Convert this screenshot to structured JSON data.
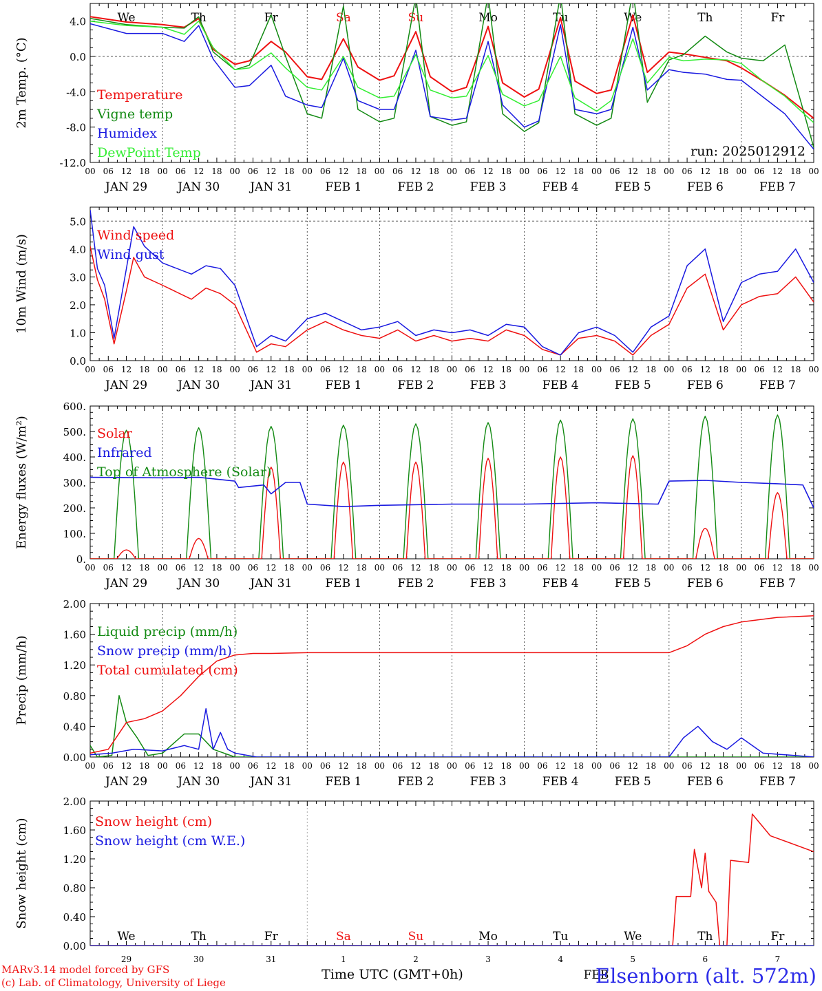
{
  "colors": {
    "red": "#ee1111",
    "green": "#138a13",
    "blue": "#1a1ae0",
    "light_green": "#33ee33",
    "grid": "#555555"
  },
  "footer": {
    "credit1": "MARv3.14 model forced by GFS",
    "credit2": "(c) Lab. of Climatology, University of Liege",
    "xlabel": "Time UTC (GMT+0h)",
    "station": "Elsenborn (alt. 572m)",
    "feb_label": "FEB"
  },
  "chart_data": [
    {
      "type": "line",
      "ylabel": "2m Temp. (°C)",
      "ylim": [
        -12,
        6
      ],
      "yticks": [
        "4.0",
        "0.0",
        "-4.0",
        "-8.0",
        "-12.0"
      ],
      "ytick_values": [
        4,
        0,
        -4,
        -8,
        -12
      ],
      "dashed_y": [
        0
      ],
      "weekdays": [
        "We",
        "Th",
        "Fr",
        "Sa",
        "Su",
        "Mo",
        "Tu",
        "We",
        "Th",
        "Fr"
      ],
      "weekend_days": [
        3,
        4
      ],
      "hour_labels": [
        "00",
        "06",
        "12",
        "18"
      ],
      "date_labels": [
        "JAN 29",
        "JAN 30",
        "JAN 31",
        "FEB 1",
        "FEB 2",
        "FEB 3",
        "FEB 4",
        "FEB 5",
        "FEB 6",
        "FEB 7"
      ],
      "run_label": "run: 2025012912",
      "legend": [
        "Temperature",
        "Vigne temp",
        "Humidex",
        "DewPoint Temp"
      ],
      "x_unit": "days from JAN 29 00 UTC",
      "series": [
        {
          "name": "Temperature",
          "x": [
            0,
            0.5,
            1,
            1.3,
            1.5,
            1.7,
            2,
            2.2,
            2.5,
            2.7,
            3,
            3.2,
            3.5,
            3.7,
            4,
            4.2,
            4.5,
            4.7,
            5,
            5.2,
            5.5,
            5.7,
            6,
            6.2,
            6.5,
            6.7,
            7,
            7.2,
            7.5,
            7.7,
            8,
            8.2,
            8.5,
            8.8,
            9,
            9.3,
            9.6,
            10
          ],
          "y": [
            4.5,
            3.9,
            3.6,
            3.3,
            4.3,
            0.8,
            -0.9,
            -0.5,
            1.7,
            0.5,
            -2.3,
            -2.6,
            2,
            -1.2,
            -2.7,
            -2.2,
            2.8,
            -2.3,
            -4,
            -3.5,
            3.4,
            -3,
            -4.6,
            -3.7,
            4.4,
            -2.8,
            -4.2,
            -3.8,
            4.7,
            -1.8,
            0.5,
            0.3,
            -0.1,
            -0.5,
            -1.3,
            -2.8,
            -4.4,
            -7
          ],
          "color": "#ee1111"
        },
        {
          "name": "Vigne temp",
          "x": [
            0,
            0.5,
            1,
            1.3,
            1.5,
            1.7,
            2,
            2.2,
            2.5,
            2.7,
            3,
            3.2,
            3.5,
            3.7,
            4,
            4.2,
            4.5,
            4.7,
            5,
            5.2,
            5.5,
            5.7,
            6,
            6.2,
            6.5,
            6.7,
            7,
            7.2,
            7.5,
            7.7,
            8,
            8.2,
            8.5,
            8.8,
            9,
            9.3,
            9.6,
            10
          ],
          "y": [
            4.3,
            3.6,
            3.3,
            3.2,
            4.5,
            0.5,
            -1.5,
            -1,
            4.7,
            0,
            -6.5,
            -7,
            5.7,
            -6,
            -7.4,
            -7,
            6.8,
            -6.8,
            -7.8,
            -7.4,
            7,
            -6.5,
            -8.5,
            -7.5,
            7,
            -6.5,
            -7.8,
            -7,
            7.5,
            -5.2,
            -0.4,
            0.2,
            2.3,
            0.5,
            -0.2,
            -0.5,
            1.3,
            -10.3
          ],
          "color": "#138a13"
        },
        {
          "name": "Humidex",
          "x": [
            0,
            0.5,
            1,
            1.3,
            1.5,
            1.7,
            2,
            2.2,
            2.5,
            2.7,
            3,
            3.2,
            3.5,
            3.7,
            4,
            4.2,
            4.5,
            4.7,
            5,
            5.2,
            5.5,
            5.7,
            6,
            6.2,
            6.5,
            6.7,
            7,
            7.2,
            7.5,
            7.7,
            8,
            8.2,
            8.5,
            8.8,
            9,
            9.3,
            9.6,
            10
          ],
          "y": [
            3.7,
            2.6,
            2.6,
            1.7,
            3.5,
            -0.3,
            -3.5,
            -3.3,
            -1,
            -4.5,
            -5.5,
            -5.8,
            -0.2,
            -5,
            -6,
            -6,
            0.7,
            -6.8,
            -7.2,
            -7,
            1.7,
            -5.5,
            -8,
            -7.3,
            3.6,
            -6,
            -6.5,
            -6,
            3.3,
            -3.8,
            -1.5,
            -1.8,
            -2,
            -2.6,
            -2.7,
            -4.6,
            -6.5,
            -10.5
          ],
          "color": "#1a1ae0"
        },
        {
          "name": "DewPoint Temp",
          "x": [
            0,
            0.5,
            1,
            1.3,
            1.5,
            1.7,
            2,
            2.2,
            2.5,
            2.7,
            3,
            3.2,
            3.5,
            3.7,
            4,
            4.2,
            4.5,
            4.7,
            5,
            5.2,
            5.5,
            5.7,
            6,
            6.2,
            6.5,
            6.7,
            7,
            7.2,
            7.5,
            7.7,
            8,
            8.2,
            8.5,
            8.8,
            9,
            9.3,
            9.6,
            10
          ],
          "y": [
            4,
            3.5,
            3.3,
            2.5,
            4,
            1,
            -1.5,
            -1.3,
            0.4,
            -1.3,
            -3.5,
            -3.8,
            0,
            -3.5,
            -4.7,
            -4.5,
            0.2,
            -3.8,
            -4.7,
            -4.5,
            0.1,
            -4.3,
            -5.6,
            -5,
            0,
            -4.7,
            -6.2,
            -5,
            2,
            -3,
            -0.1,
            -0.5,
            -0.3,
            -0.4,
            -0.8,
            -2.8,
            -4.5,
            -7.5
          ],
          "color": "#33ee33"
        }
      ]
    },
    {
      "type": "line",
      "ylabel": "10m Wind (m/s)",
      "ylim": [
        0,
        5.5
      ],
      "yticks": [
        "5.0",
        "4.0",
        "3.0",
        "2.0",
        "1.0",
        "0.0"
      ],
      "ytick_values": [
        5,
        4,
        3,
        2,
        1,
        0
      ],
      "dashed_y": [
        5
      ],
      "hour_labels": [
        "00",
        "06",
        "12",
        "18"
      ],
      "date_labels": [
        "JAN 29",
        "JAN 30",
        "JAN 31",
        "FEB 1",
        "FEB 2",
        "FEB 3",
        "FEB 4",
        "FEB 5",
        "FEB 6",
        "FEB 7"
      ],
      "legend": [
        "Wind speed",
        "Wind gust"
      ],
      "series": [
        {
          "name": "Wind speed",
          "x": [
            0,
            0.1,
            0.2,
            0.33,
            0.5,
            0.6,
            0.75,
            1,
            1.4,
            1.6,
            1.8,
            2,
            2.3,
            2.5,
            2.7,
            3,
            3.25,
            3.5,
            3.75,
            4,
            4.25,
            4.5,
            4.75,
            5,
            5.25,
            5.5,
            5.75,
            6,
            6.25,
            6.5,
            6.75,
            7,
            7.25,
            7.5,
            7.75,
            8,
            8.25,
            8.5,
            8.75,
            9,
            9.25,
            9.5,
            9.75,
            10
          ],
          "y": [
            4.1,
            2.9,
            2.2,
            0.6,
            2.5,
            3.7,
            3,
            2.7,
            2.2,
            2.6,
            2.4,
            2,
            0.3,
            0.6,
            0.5,
            1.1,
            1.4,
            1.1,
            0.9,
            0.8,
            1.1,
            0.7,
            0.9,
            0.7,
            0.8,
            0.7,
            1.1,
            0.9,
            0.4,
            0.2,
            0.8,
            0.9,
            0.7,
            0.2,
            0.9,
            1.3,
            2.6,
            3.1,
            1.1,
            2,
            2.3,
            2.4,
            3,
            2.1
          ],
          "color": "#ee1111"
        },
        {
          "name": "Wind gust",
          "x": [
            0,
            0.1,
            0.2,
            0.33,
            0.5,
            0.6,
            0.75,
            1,
            1.4,
            1.6,
            1.8,
            2,
            2.3,
            2.5,
            2.7,
            3,
            3.25,
            3.5,
            3.75,
            4,
            4.25,
            4.5,
            4.75,
            5,
            5.25,
            5.5,
            5.75,
            6,
            6.25,
            6.5,
            6.75,
            7,
            7.25,
            7.5,
            7.75,
            8,
            8.25,
            8.5,
            8.75,
            9,
            9.25,
            9.5,
            9.75,
            10
          ],
          "y": [
            5.4,
            3.3,
            2.7,
            0.8,
            3.3,
            4.8,
            4.1,
            3.5,
            3.1,
            3.4,
            3.3,
            2.7,
            0.5,
            0.9,
            0.7,
            1.5,
            1.7,
            1.4,
            1.1,
            1.2,
            1.4,
            0.9,
            1.1,
            1,
            1.1,
            0.9,
            1.3,
            1.2,
            0.5,
            0.2,
            1,
            1.2,
            0.9,
            0.3,
            1.2,
            1.6,
            3.4,
            4,
            1.4,
            2.8,
            3.1,
            3.2,
            4,
            2.8
          ],
          "color": "#1a1ae0"
        }
      ]
    },
    {
      "type": "line",
      "ylabel": "Energy fluxes (W/m²)",
      "ylim": [
        0,
        600
      ],
      "yticks": [
        "600.",
        "500.",
        "400.",
        "300.",
        "200.",
        "100.",
        "0."
      ],
      "ytick_values": [
        600,
        500,
        400,
        300,
        200,
        100,
        0
      ],
      "dashed_y": [],
      "hour_labels": [
        "00",
        "06",
        "12",
        "18"
      ],
      "date_labels": [
        "JAN 29",
        "JAN 30",
        "JAN 31",
        "FEB 1",
        "FEB 2",
        "FEB 3",
        "FEB 4",
        "FEB 5",
        "FEB 6",
        "FEB 7"
      ],
      "legend": [
        "Solar",
        "Infrared",
        "Top of Atmosphere (Solar)"
      ],
      "day_peaks_solar": [
        35,
        80,
        360,
        380,
        380,
        395,
        400,
        405,
        120,
        260
      ],
      "day_peaks_toa": [
        505,
        515,
        520,
        525,
        530,
        535,
        545,
        550,
        560,
        565
      ],
      "infrared": {
        "x": [
          0,
          1,
          1.5,
          2,
          2.05,
          2.4,
          2.5,
          2.7,
          2.9,
          3,
          3.5,
          4,
          5,
          6,
          7,
          7.85,
          8,
          8.5,
          9,
          9.5,
          9.85,
          10
        ],
        "y": [
          320,
          318,
          320,
          305,
          280,
          290,
          255,
          300,
          300,
          215,
          205,
          210,
          215,
          215,
          220,
          215,
          305,
          308,
          300,
          295,
          290,
          200
        ]
      }
    },
    {
      "type": "line",
      "ylabel": "Precip (mm/h)",
      "ylim": [
        0,
        2
      ],
      "yticks": [
        "2.00",
        "1.60",
        "1.20",
        "0.80",
        "0.40",
        "0.00"
      ],
      "ytick_values": [
        2,
        1.6,
        1.2,
        0.8,
        0.4,
        0
      ],
      "dashed_y": [],
      "hour_labels": [
        "00",
        "06",
        "12",
        "18"
      ],
      "date_labels": [
        "JAN 29",
        "JAN 30",
        "JAN 31",
        "FEB 1",
        "FEB 2",
        "FEB 3",
        "FEB 4",
        "FEB 5",
        "FEB 6",
        "FEB 7"
      ],
      "legend": [
        "Liquid precip (mm/h)",
        "Snow precip (mm/h)",
        "Total cumulated (cm)"
      ],
      "series": [
        {
          "name": "Liquid precip (mm/h)",
          "x": [
            0,
            0.1,
            0.3,
            0.4,
            0.5,
            0.65,
            0.8,
            1,
            1.3,
            1.5,
            1.7,
            2,
            2.3,
            3,
            8,
            10
          ],
          "y": [
            0.15,
            0,
            0.02,
            0.8,
            0.45,
            0.25,
            0.02,
            0.05,
            0.3,
            0.3,
            0.1,
            0,
            0,
            0,
            0,
            0
          ],
          "color": "#138a13"
        },
        {
          "name": "Snow precip (mm/h)",
          "x": [
            0,
            0.3,
            0.6,
            1,
            1.3,
            1.5,
            1.6,
            1.7,
            1.8,
            1.9,
            2,
            2.3,
            8,
            8.2,
            8.4,
            8.6,
            8.8,
            9,
            9.3,
            9.6,
            10
          ],
          "y": [
            0.03,
            0.05,
            0.1,
            0.08,
            0.15,
            0.1,
            0.63,
            0.1,
            0.32,
            0.1,
            0.05,
            0,
            0,
            0.25,
            0.4,
            0.2,
            0.1,
            0.25,
            0.05,
            0.03,
            0
          ],
          "color": "#1a1ae0"
        },
        {
          "name": "Total cumulated (cm)",
          "x": [
            0,
            0.25,
            0.5,
            0.75,
            1,
            1.25,
            1.5,
            1.75,
            2,
            2.25,
            2.5,
            3,
            8,
            8.25,
            8.5,
            8.75,
            9,
            9.5,
            10
          ],
          "y": [
            0.05,
            0.1,
            0.45,
            0.5,
            0.6,
            0.8,
            1.05,
            1.25,
            1.33,
            1.35,
            1.35,
            1.36,
            1.36,
            1.45,
            1.6,
            1.7,
            1.76,
            1.82,
            1.84
          ],
          "color": "#ee1111"
        }
      ]
    },
    {
      "type": "line",
      "ylabel": "Snow height (cm)",
      "ylim": [
        0,
        2
      ],
      "yticks": [
        "2.00",
        "1.60",
        "1.20",
        "0.80",
        "0.40",
        "0.00"
      ],
      "ytick_values": [
        2,
        1.6,
        1.2,
        0.8,
        0.4,
        0
      ],
      "dashed_y": [],
      "weekdays": [
        "We",
        "Th",
        "Fr",
        "Sa",
        "Su",
        "Mo",
        "Tu",
        "We",
        "Th",
        "Fr"
      ],
      "weekend_days": [
        3,
        4
      ],
      "day_numbers": [
        "29",
        "30",
        "31",
        "1",
        "2",
        "3",
        "4",
        "5",
        "6",
        "7"
      ],
      "legend": [
        "Snow height (cm)",
        "Snow height (cm W.E.)"
      ],
      "series": [
        {
          "name": "Snow height (cm)",
          "x": [
            0,
            8.05,
            8.1,
            8.3,
            8.35,
            8.45,
            8.5,
            8.55,
            8.65,
            8.7,
            8.72,
            8.8,
            8.85,
            9.1,
            9.15,
            9.4,
            10
          ],
          "y": [
            0,
            0,
            0.68,
            0.68,
            1.33,
            0.8,
            1.28,
            0.75,
            0.6,
            0,
            0,
            0,
            1.18,
            1.15,
            1.82,
            1.52,
            1.3
          ],
          "color": "#ee1111"
        },
        {
          "name": "Snow height (cm W.E.)",
          "x": [
            0,
            10
          ],
          "y": [
            0,
            0
          ],
          "color": "#1a1ae0"
        }
      ]
    }
  ]
}
